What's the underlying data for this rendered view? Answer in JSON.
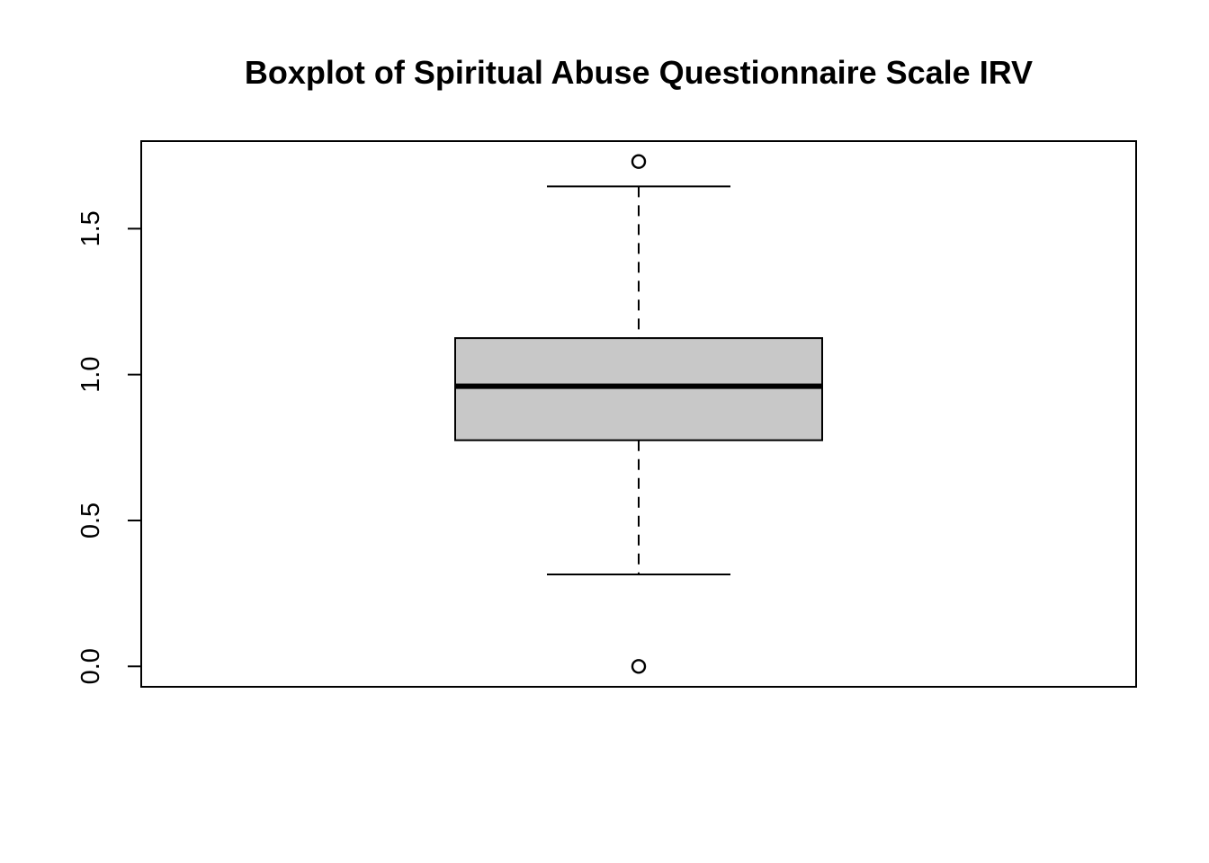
{
  "chart_data": {
    "type": "boxplot",
    "title": "Boxplot of Spiritual Abuse Questionnaire Scale IRV",
    "xlabel": "",
    "ylabel": "",
    "ylim": [
      -0.07,
      1.8
    ],
    "y_ticks": [
      0.0,
      0.5,
      1.0,
      1.5
    ],
    "y_tick_labels": [
      "0.0",
      "0.5",
      "1.0",
      "1.5"
    ],
    "grid": false,
    "box": {
      "whisker_low": 0.315,
      "q1": 0.775,
      "median": 0.96,
      "q3": 1.125,
      "whisker_high": 1.645
    },
    "outliers": [
      1.73,
      0.0
    ],
    "colors": {
      "box_fill": "#c8c8c8",
      "stroke": "#000000"
    }
  }
}
